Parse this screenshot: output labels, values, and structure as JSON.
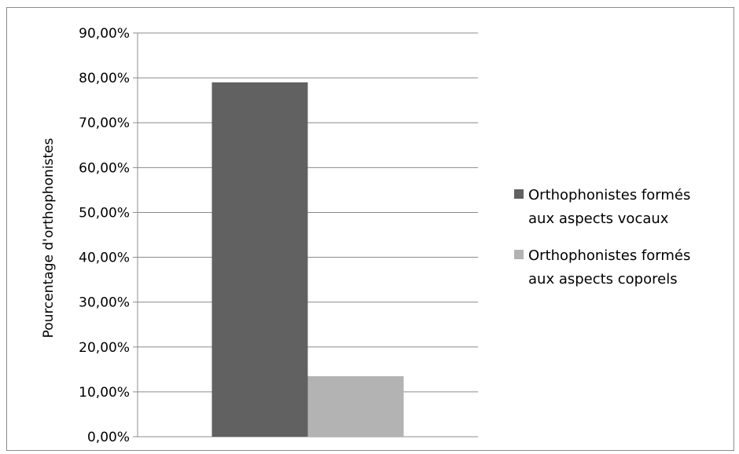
{
  "chart_data": {
    "type": "bar",
    "categories": [
      ""
    ],
    "series": [
      {
        "name": "Orthophonistes formés aux aspects vocaux",
        "values": [
          0.79
        ],
        "color": "#616161"
      },
      {
        "name": "Orthophonistes formés aux aspects coporels",
        "values": [
          0.135
        ],
        "color": "#b3b3b3"
      }
    ],
    "title": "",
    "xlabel": "",
    "ylabel": "Pourcentage d'orthophonistes",
    "ylim": [
      0,
      0.9
    ],
    "y_ticks": [
      "0,00%",
      "10,00%",
      "20,00%",
      "30,00%",
      "40,00%",
      "50,00%",
      "60,00%",
      "70,00%",
      "80,00%",
      "90,00%"
    ],
    "grid": true,
    "legend_position": "right",
    "legend_lines": [
      [
        "Orthophonistes formés",
        "aux aspects vocaux"
      ],
      [
        "Orthophonistes formés",
        "aux aspects coporels"
      ]
    ]
  }
}
